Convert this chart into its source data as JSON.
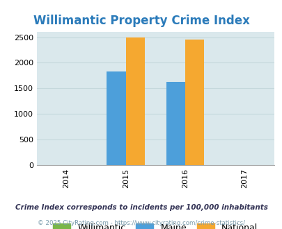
{
  "title": "Willimantic Property Crime Index",
  "title_color": "#2b7bba",
  "title_fontsize": 12,
  "years": [
    2014,
    2015,
    2016,
    2017
  ],
  "xlim": [
    2013.5,
    2017.5
  ],
  "ylim": [
    0,
    2600
  ],
  "yticks": [
    0,
    500,
    1000,
    1500,
    2000,
    2500
  ],
  "bar_width": 0.32,
  "data": {
    "2015": {
      "willimantic": null,
      "maine": 1830,
      "national": 2500
    },
    "2016": {
      "willimantic": null,
      "maine": 1630,
      "national": 2450
    }
  },
  "colors": {
    "willimantic": "#7ab648",
    "maine": "#4d9fda",
    "national": "#f5a830"
  },
  "bg_color": "#dae8ec",
  "grid_color": "#c5d8dc",
  "legend_labels": [
    "Willimantic",
    "Maine",
    "National"
  ],
  "legend_colors": [
    "#7ab648",
    "#4d9fda",
    "#f5a830"
  ],
  "footnote1": "Crime Index corresponds to incidents per 100,000 inhabitants",
  "footnote2": "© 2025 CityRating.com - https://www.cityrating.com/crime-statistics/",
  "footnote1_color": "#333355",
  "footnote2_color": "#7799aa"
}
